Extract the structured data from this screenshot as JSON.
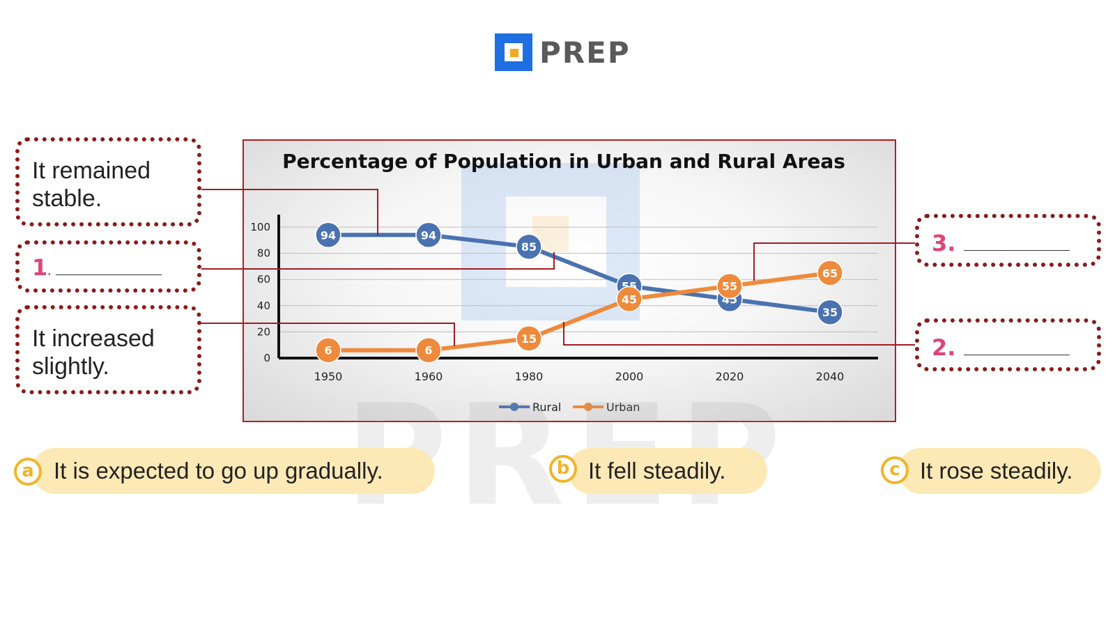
{
  "brand": {
    "name": "PREP",
    "color_blue": "#1e6fe0",
    "color_orange": "#f5a623",
    "color_gray": "#5a5a5a"
  },
  "watermark": "PREP",
  "chart_data": {
    "type": "line",
    "title": "Percentage of Population in Urban and Rural Areas",
    "categories": [
      "1950",
      "1960",
      "1980",
      "2000",
      "2020",
      "2040"
    ],
    "series": [
      {
        "name": "Rural",
        "color": "#4a72b0",
        "values": [
          94,
          94,
          85,
          55,
          45,
          35
        ]
      },
      {
        "name": "Urban",
        "color": "#ee8a3c",
        "values": [
          6,
          6,
          15,
          45,
          55,
          65
        ]
      }
    ],
    "y_ticks": [
      "0",
      "20",
      "40",
      "60",
      "80",
      "100"
    ],
    "ylim": [
      0,
      100
    ],
    "grid": true,
    "legend": "bottom-center",
    "data_labels": true
  },
  "descriptions": {
    "box1": {
      "line1": "It remained",
      "line2": "stable."
    },
    "box2": {
      "number": "1",
      "suffix": "."
    },
    "box3": {
      "line1": "It increased",
      "line2": "slightly."
    },
    "box4": {
      "number": "3."
    },
    "box5": {
      "number": "2."
    }
  },
  "options": [
    {
      "letter": "a",
      "text": "It is expected to go up gradually."
    },
    {
      "letter": "b",
      "text": "It fell steadily."
    },
    {
      "letter": "c",
      "text": "It rose steadily."
    }
  ]
}
